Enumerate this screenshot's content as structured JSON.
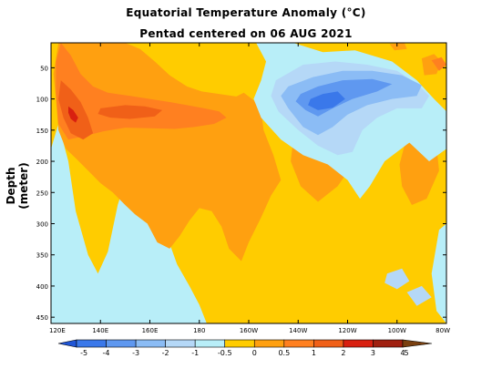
{
  "chart_data": {
    "type": "heatmap",
    "title": "Equatorial Temperature Anomaly (°C)",
    "subtitle": "Pentad centered on 06 AUG 2021",
    "ylabel": "Depth (meter)",
    "x_ticks": [
      "120E",
      "140E",
      "160E",
      "180",
      "160W",
      "140W",
      "120W",
      "100W",
      "80W"
    ],
    "y_ticks": [
      "50",
      "100",
      "150",
      "200",
      "250",
      "300",
      "350",
      "400",
      "450"
    ],
    "y_tick_values": [
      50,
      100,
      150,
      200,
      250,
      300,
      350,
      400,
      450
    ],
    "ylim": [
      460,
      10
    ],
    "colorbar": {
      "labels": [
        "-5",
        "-4",
        "-3",
        "-2",
        "-1",
        "-0.5",
        "0",
        "0.5",
        "1",
        "2",
        "3",
        "4",
        "5"
      ],
      "colors": [
        "#1f55d6",
        "#3a78ea",
        "#5f98f0",
        "#8bbcf5",
        "#b5d8f7",
        "#b8eef8",
        "#ffcc00",
        "#ffa010",
        "#ff8020",
        "#f06018",
        "#d82010",
        "#a02010",
        "#7a4010"
      ]
    },
    "regions": [
      {
        "level": 0.0,
        "points": [
          [
            120,
            10
          ],
          [
            280,
            10
          ],
          [
            280,
            460
          ],
          [
            120,
            460
          ]
        ]
      },
      {
        "level": -0.5,
        "points": [
          [
            120,
            180
          ],
          [
            123,
            140
          ],
          [
            127,
            200
          ],
          [
            130,
            280
          ],
          [
            135,
            350
          ],
          [
            139,
            380
          ],
          [
            143,
            345
          ],
          [
            147,
            270
          ],
          [
            151,
            220
          ],
          [
            156,
            245
          ],
          [
            161,
            290
          ],
          [
            166,
            310
          ],
          [
            171,
            365
          ],
          [
            176,
            400
          ],
          [
            180,
            430
          ],
          [
            183,
            460
          ],
          [
            120,
            460
          ]
        ]
      },
      {
        "level": 0.5,
        "points": [
          [
            123,
            10
          ],
          [
            150,
            10
          ],
          [
            156,
            20
          ],
          [
            162,
            40
          ],
          [
            168,
            62
          ],
          [
            175,
            80
          ],
          [
            181,
            88
          ],
          [
            188,
            92
          ],
          [
            195,
            96
          ],
          [
            198,
            90
          ],
          [
            202,
            102
          ],
          [
            205,
            120
          ],
          [
            206,
            150
          ],
          [
            210,
            190
          ],
          [
            213,
            230
          ],
          [
            209,
            255
          ],
          [
            205,
            290
          ],
          [
            200,
            330
          ],
          [
            197,
            360
          ],
          [
            192,
            340
          ],
          [
            189,
            305
          ],
          [
            185,
            280
          ],
          [
            180,
            275
          ],
          [
            176,
            295
          ],
          [
            172,
            320
          ],
          [
            168,
            340
          ],
          [
            163,
            330
          ],
          [
            159,
            300
          ],
          [
            154,
            285
          ],
          [
            150,
            270
          ],
          [
            145,
            250
          ],
          [
            140,
            235
          ],
          [
            135,
            215
          ],
          [
            130,
            195
          ],
          [
            126,
            180
          ],
          [
            123,
            150
          ],
          [
            122,
            100
          ],
          [
            121,
            60
          ]
        ]
      },
      {
        "level": 1.0,
        "points": [
          [
            124,
            10
          ],
          [
            128,
            30
          ],
          [
            132,
            60
          ],
          [
            137,
            80
          ],
          [
            143,
            90
          ],
          [
            152,
            95
          ],
          [
            160,
            100
          ],
          [
            168,
            105
          ],
          [
            175,
            110
          ],
          [
            182,
            115
          ],
          [
            188,
            120
          ],
          [
            191,
            130
          ],
          [
            186,
            140
          ],
          [
            178,
            145
          ],
          [
            170,
            148
          ],
          [
            160,
            147
          ],
          [
            150,
            146
          ],
          [
            141,
            152
          ],
          [
            133,
            160
          ],
          [
            127,
            165
          ],
          [
            123,
            140
          ],
          [
            122,
            90
          ],
          [
            122,
            40
          ]
        ]
      },
      {
        "level": 2.0,
        "points": [
          [
            124,
            70
          ],
          [
            128,
            85
          ],
          [
            132,
            105
          ],
          [
            135,
            130
          ],
          [
            137,
            155
          ],
          [
            133,
            165
          ],
          [
            128,
            155
          ],
          [
            125,
            130
          ],
          [
            123,
            100
          ]
        ]
      },
      {
        "level": 2.0,
        "points": [
          [
            140,
            115
          ],
          [
            150,
            110
          ],
          [
            158,
            112
          ],
          [
            165,
            118
          ],
          [
            162,
            128
          ],
          [
            152,
            132
          ],
          [
            144,
            130
          ],
          [
            139,
            124
          ]
        ]
      },
      {
        "level": 3.0,
        "points": [
          [
            127,
            112
          ],
          [
            129,
            118
          ],
          [
            131,
            130
          ],
          [
            130,
            138
          ],
          [
            128,
            132
          ],
          [
            127,
            122
          ]
        ]
      },
      {
        "level": 0.5,
        "points": [
          [
            218,
            165
          ],
          [
            230,
            150
          ],
          [
            240,
            165
          ],
          [
            243,
            200
          ],
          [
            236,
            240
          ],
          [
            228,
            265
          ],
          [
            221,
            240
          ],
          [
            217,
            200
          ]
        ]
      },
      {
        "level": 0.5,
        "points": [
          [
            263,
            175
          ],
          [
            270,
            160
          ],
          [
            276,
            175
          ],
          [
            277,
            215
          ],
          [
            272,
            260
          ],
          [
            266,
            270
          ],
          [
            262,
            240
          ],
          [
            261,
            205
          ]
        ]
      },
      {
        "level": 0.5,
        "points": [
          [
            270,
            35
          ],
          [
            275,
            28
          ],
          [
            278,
            40
          ],
          [
            276,
            60
          ],
          [
            271,
            62
          ]
        ]
      },
      {
        "level": 1.0,
        "points": [
          [
            274,
            38
          ],
          [
            278,
            33
          ],
          [
            280,
            45
          ],
          [
            277,
            55
          ]
        ]
      },
      {
        "level": 0.5,
        "points": [
          [
            257,
            12
          ],
          [
            263,
            10
          ],
          [
            264,
            20
          ],
          [
            259,
            22
          ]
        ]
      },
      {
        "level": -0.5,
        "points": [
          [
            203,
            10
          ],
          [
            218,
            10
          ],
          [
            230,
            25
          ],
          [
            243,
            22
          ],
          [
            258,
            40
          ],
          [
            268,
            70
          ],
          [
            275,
            100
          ],
          [
            280,
            120
          ],
          [
            280,
            180
          ],
          [
            273,
            200
          ],
          [
            265,
            170
          ],
          [
            255,
            200
          ],
          [
            249,
            240
          ],
          [
            245,
            260
          ],
          [
            240,
            230
          ],
          [
            232,
            205
          ],
          [
            222,
            190
          ],
          [
            213,
            165
          ],
          [
            205,
            130
          ],
          [
            202,
            100
          ],
          [
            205,
            70
          ],
          [
            207,
            40
          ]
        ]
      },
      {
        "level": -1.0,
        "points": [
          [
            211,
            70
          ],
          [
            222,
            45
          ],
          [
            235,
            40
          ],
          [
            248,
            45
          ],
          [
            260,
            55
          ],
          [
            268,
            75
          ],
          [
            273,
            95
          ],
          [
            270,
            115
          ],
          [
            260,
            115
          ],
          [
            252,
            130
          ],
          [
            246,
            150
          ],
          [
            242,
            185
          ],
          [
            236,
            190
          ],
          [
            228,
            175
          ],
          [
            220,
            150
          ],
          [
            212,
            120
          ],
          [
            209,
            95
          ]
        ]
      },
      {
        "level": -2.0,
        "points": [
          [
            216,
            80
          ],
          [
            226,
            65
          ],
          [
            238,
            55
          ],
          [
            250,
            55
          ],
          [
            262,
            62
          ],
          [
            270,
            78
          ],
          [
            268,
            95
          ],
          [
            258,
            100
          ],
          [
            248,
            110
          ],
          [
            240,
            125
          ],
          [
            234,
            145
          ],
          [
            228,
            158
          ],
          [
            222,
            145
          ],
          [
            216,
            115
          ],
          [
            213,
            95
          ]
        ]
      },
      {
        "level": -3.0,
        "points": [
          [
            221,
            92
          ],
          [
            228,
            80
          ],
          [
            238,
            70
          ],
          [
            250,
            68
          ],
          [
            258,
            76
          ],
          [
            252,
            88
          ],
          [
            242,
            100
          ],
          [
            234,
            115
          ],
          [
            228,
            128
          ],
          [
            223,
            118
          ],
          [
            219,
            104
          ]
        ]
      },
      {
        "level": -4.0,
        "points": [
          [
            225,
            100
          ],
          [
            230,
            92
          ],
          [
            236,
            88
          ],
          [
            239,
            100
          ],
          [
            234,
            114
          ],
          [
            228,
            118
          ],
          [
            224,
            110
          ]
        ]
      },
      {
        "level": -1.0,
        "points": [
          [
            256,
            380
          ],
          [
            262,
            372
          ],
          [
            265,
            392
          ],
          [
            260,
            405
          ],
          [
            255,
            395
          ]
        ]
      },
      {
        "level": -1.0,
        "points": [
          [
            264,
            410
          ],
          [
            270,
            400
          ],
          [
            274,
            418
          ],
          [
            268,
            432
          ]
        ]
      },
      {
        "level": -0.5,
        "points": [
          [
            277,
            310
          ],
          [
            280,
            300
          ],
          [
            280,
            460
          ],
          [
            276,
            440
          ],
          [
            274,
            380
          ]
        ]
      }
    ]
  }
}
